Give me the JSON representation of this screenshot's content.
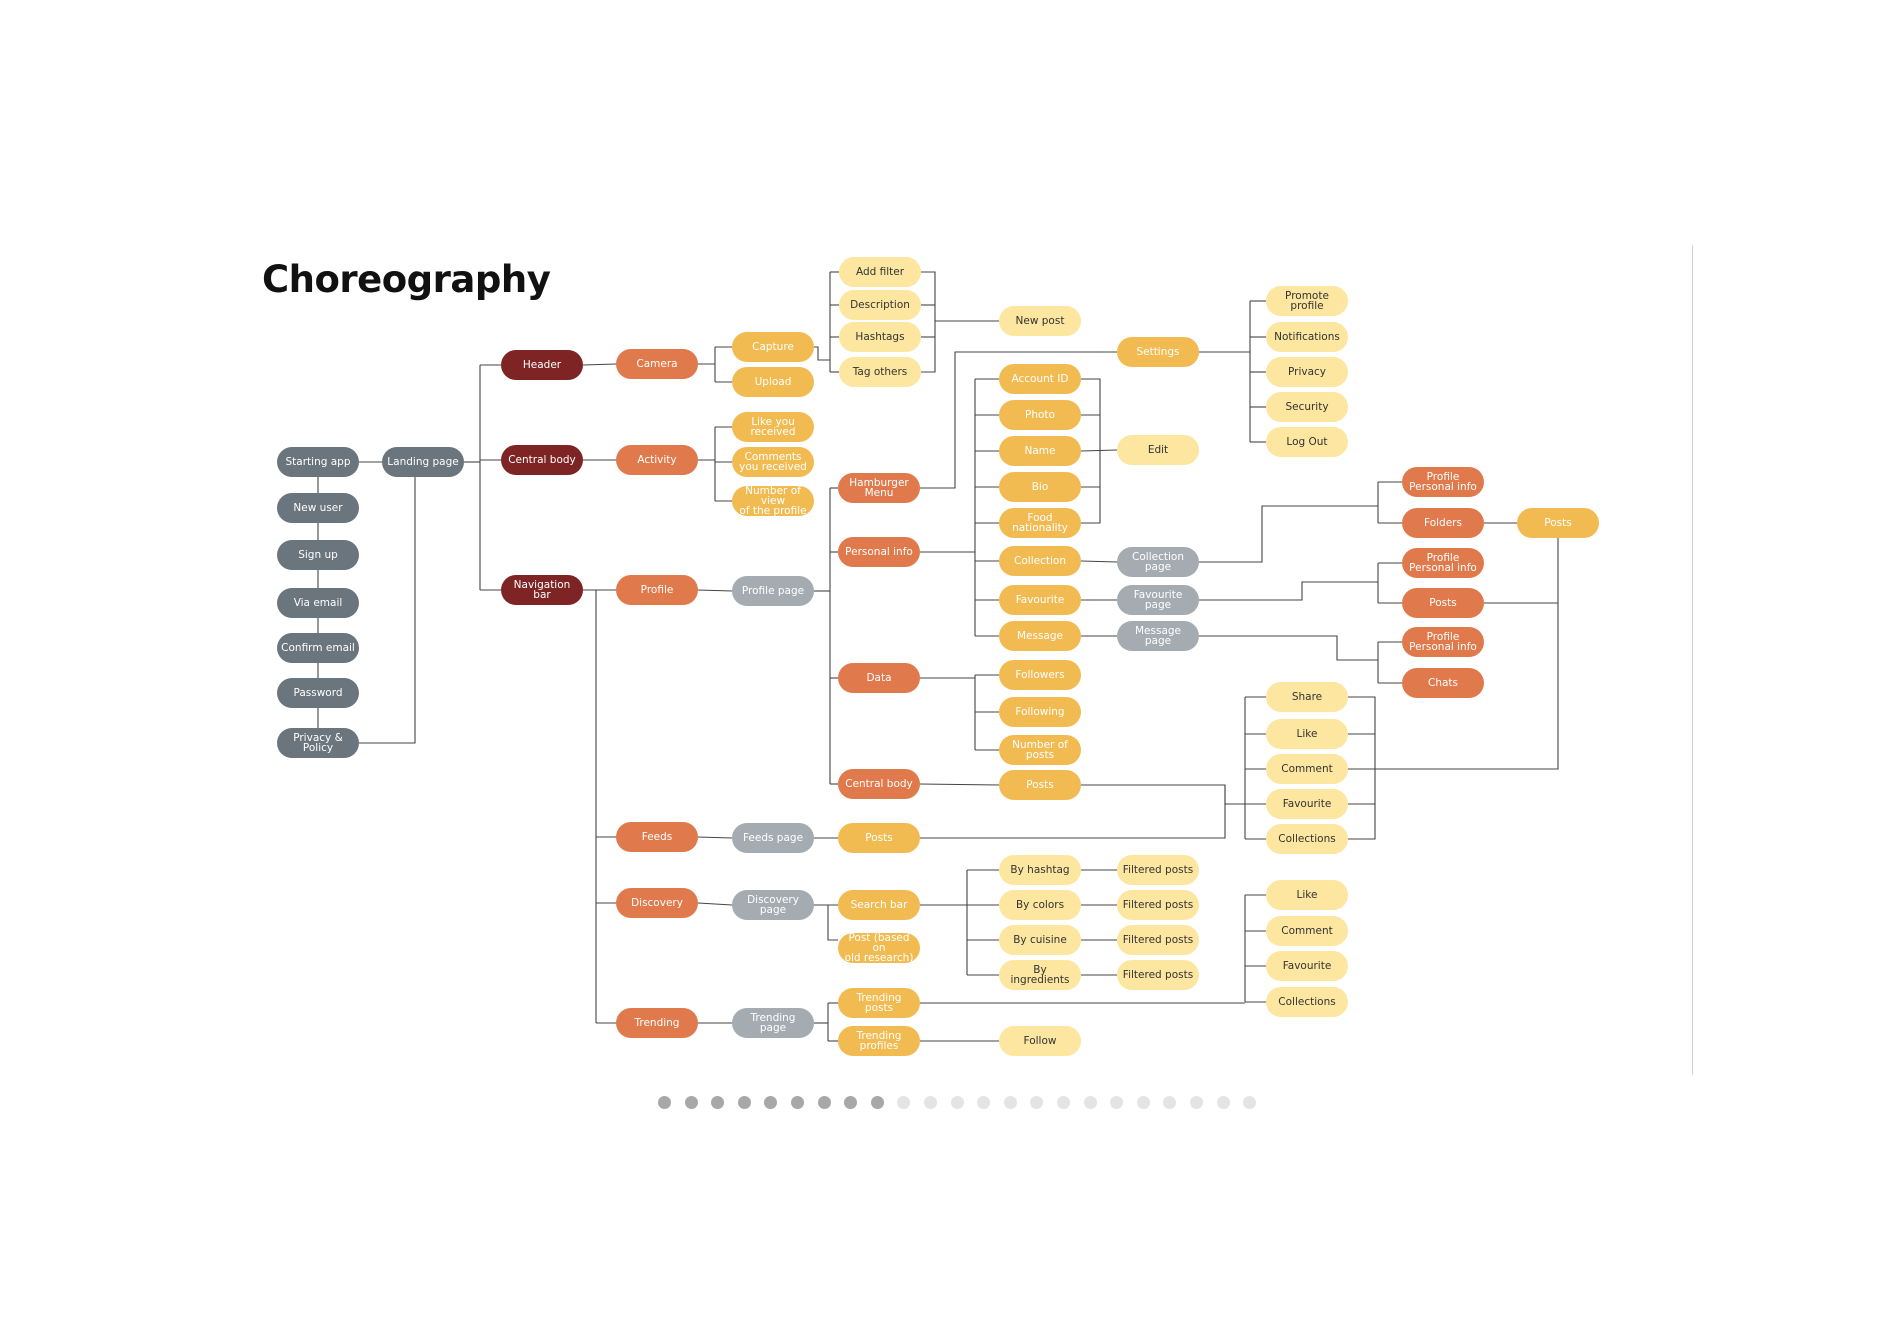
{
  "title": "Choreography",
  "colors": {
    "gray": "#6a757d",
    "light_gray": "#a4acb1",
    "dark_red": "#7e2424",
    "orange": "#e07a4c",
    "gold": "#f2bb52",
    "cream": "#fce6a0",
    "connector": "#444444"
  },
  "nodes": {
    "starting_app": "Starting app",
    "new_user": "New user",
    "sign_up": "Sign up",
    "via_email": "Via email",
    "confirm_email": "Confirm email",
    "password": "Password",
    "privacy_policy": "Privacy & Policy",
    "landing_page": "Landing page",
    "header": "Header",
    "central_body": "Central body",
    "navigation_bar": "Navigation bar",
    "camera": "Camera",
    "activity": "Activity",
    "profile": "Profile",
    "feeds": "Feeds",
    "discovery": "Discovery",
    "trending": "Trending",
    "capture": "Capture",
    "upload": "Upload",
    "add_filter": "Add filter",
    "description": "Description",
    "hashtags": "Hashtags",
    "tag_others": "Tag others",
    "new_post": "New post",
    "like_you_received": "Like you\nreceived",
    "comments_you_received": "Comments\nyou received",
    "number_of_view": "Number of view\nof the profile",
    "profile_page": "Profile page",
    "hamburger_menu": "Hamburger\nMenu",
    "personal_info": "Personal info",
    "data": "Data",
    "profile_central_body": "Central body",
    "settings": "Settings",
    "promote_profile": "Promote profile",
    "notifications": "Notifications",
    "privacy": "Privacy",
    "security": "Security",
    "log_out": "Log Out",
    "account_id": "Account ID",
    "photo": "Photo",
    "name": "Name",
    "bio": "Bio",
    "food_nationality": "Food\nnationality",
    "edit": "Edit",
    "collection": "Collection",
    "favourite": "Favourite",
    "message": "Message",
    "collection_page": "Collection page",
    "favourite_page": "Favourite page",
    "message_page": "Message page",
    "profile_personal_info_1": "Profile\nPersonal info",
    "folders": "Folders",
    "profile_personal_info_2": "Profile\nPersonal info",
    "posts_right": "Posts",
    "profile_personal_info_3": "Profile\nPersonal info",
    "chats": "Chats",
    "posts_far": "Posts",
    "followers": "Followers",
    "following": "Following",
    "number_of_posts": "Number of\nposts",
    "posts_central": "Posts",
    "share": "Share",
    "like": "Like",
    "comment": "Comment",
    "favourite_action": "Favourite",
    "collections": "Collections",
    "feeds_page": "Feeds  page",
    "feeds_posts": "Posts",
    "discovery_page": "Discovery page",
    "search_bar": "Search bar",
    "post_old_research": "Post (based on\nold research)",
    "by_hashtag": "By hashtag",
    "by_colors": "By colors",
    "by_cuisine": "By cuisine",
    "by_ingredients": "By ingredients",
    "filtered_posts_1": "Filtered posts",
    "filtered_posts_2": "Filtered posts",
    "filtered_posts_3": "Filtered posts",
    "filtered_posts_4": "Filtered posts",
    "trending_page": "Trending page",
    "trending_posts": "Trending posts",
    "trending_profiles": "Trending profiles",
    "follow": "Follow",
    "like_2": "Like",
    "comment_2": "Comment",
    "favourite_2": "Favourite",
    "collections_2": "Collections"
  },
  "pagination": {
    "total": 23,
    "active": 9
  }
}
